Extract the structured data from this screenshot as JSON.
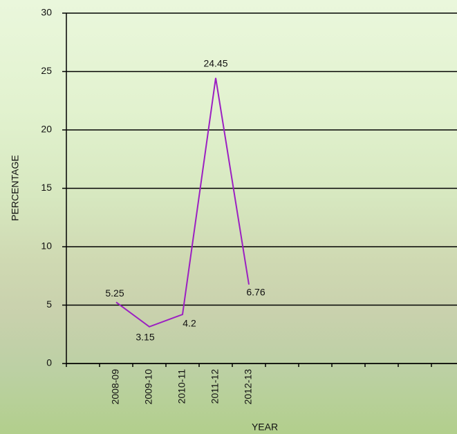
{
  "chart_data": {
    "type": "line",
    "xlabel": "YEAR",
    "ylabel": "PERCENTAGE",
    "categories": [
      null,
      "2008-09",
      "2009-10",
      "2010-11",
      "2011-12",
      "2012-13",
      null,
      null,
      null,
      null,
      null,
      null
    ],
    "series": [
      {
        "color": "#9b1fc2",
        "values": [
          null,
          5.25,
          3.15,
          4.2,
          24.45,
          6.76,
          null,
          null,
          null,
          null,
          null,
          null
        ]
      }
    ],
    "ylim": [
      0,
      30
    ],
    "yticks": [
      0,
      5,
      10,
      15,
      20,
      25,
      30
    ],
    "grid": true
  }
}
